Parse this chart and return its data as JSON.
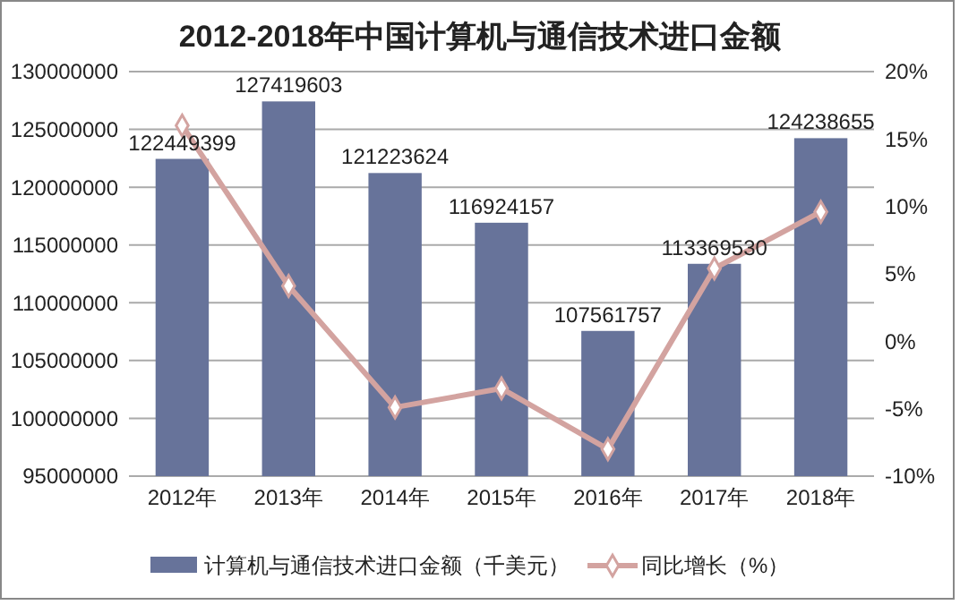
{
  "chart_data": {
    "type": "bar",
    "title": "2012-2018年中国计算机与通信技术进口金额",
    "categories": [
      "2012年",
      "2013年",
      "2014年",
      "2015年",
      "2016年",
      "2017年",
      "2018年"
    ],
    "series": [
      {
        "name": "计算机与通信技术进口金额（千美元）",
        "color": "#67739a",
        "values": [
          122449399,
          127419603,
          121223624,
          116924157,
          107561757,
          113369530,
          124238655
        ],
        "value_labels": [
          "122449399",
          "127419603",
          "121223624",
          "116924157",
          "107561757",
          "113369530",
          "124238655"
        ]
      },
      {
        "name": "同比增长（%）",
        "type": "line",
        "axis": "y2",
        "color": "#d3a3a0",
        "marker": "diamond",
        "values": [
          16,
          4.1,
          -4.9,
          -3.5,
          -8,
          5.4,
          9.6
        ]
      }
    ],
    "ylim": [
      95000000,
      130000000
    ],
    "yticks": [
      95000000,
      100000000,
      105000000,
      110000000,
      115000000,
      120000000,
      125000000,
      130000000
    ],
    "y2lim": [
      -10,
      20
    ],
    "y2ticks": [
      {
        "value": -10,
        "label": "-10%"
      },
      {
        "value": -5,
        "label": "-5%"
      },
      {
        "value": 0,
        "label": "0%"
      },
      {
        "value": 5,
        "label": "5%"
      },
      {
        "value": 10,
        "label": "10%"
      },
      {
        "value": 15,
        "label": "15%"
      },
      {
        "value": 20,
        "label": "20%"
      }
    ],
    "grid": "y",
    "legend": "bottom"
  }
}
